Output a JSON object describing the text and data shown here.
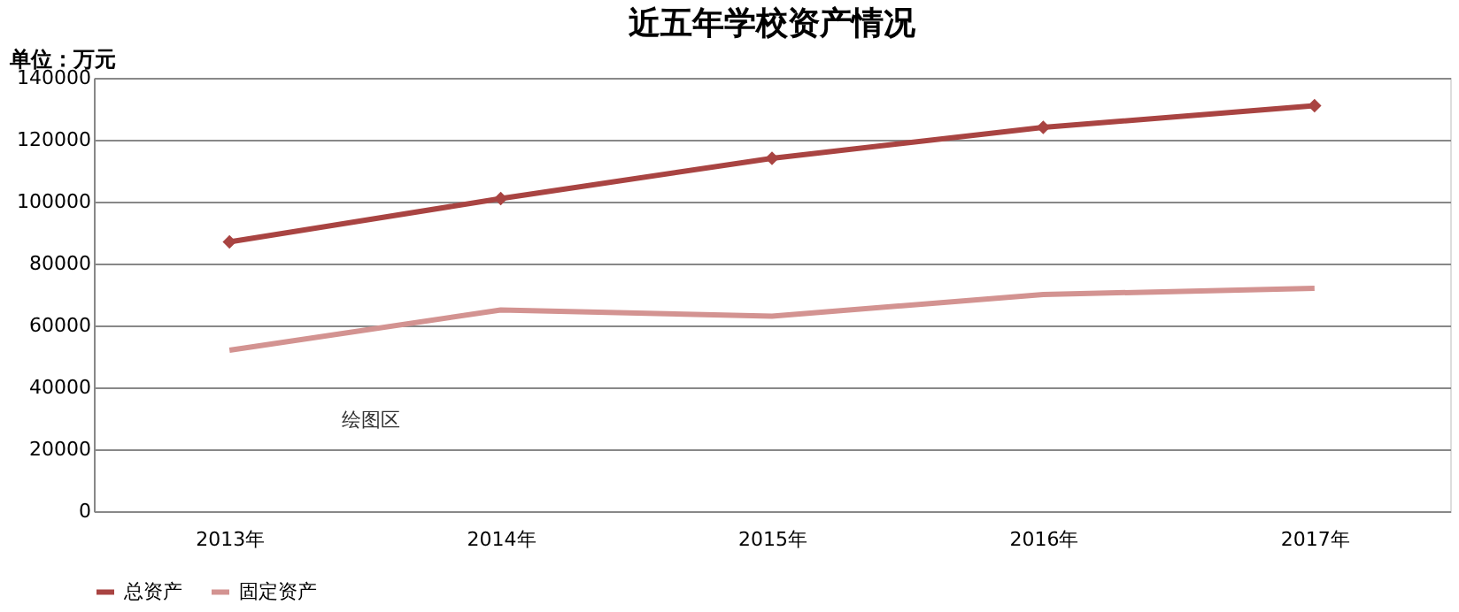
{
  "chart_data": {
    "type": "line",
    "title": "近五年学校资产情况",
    "ylabel": "单位：万元",
    "categories": [
      "2013年",
      "2014年",
      "2015年",
      "2016年",
      "2017年"
    ],
    "series": [
      {
        "name": "总资产",
        "color": "#a94442",
        "values": [
          87000,
          101000,
          114000,
          124000,
          131000
        ],
        "marker": "diamond"
      },
      {
        "name": "固定资产",
        "color": "#d39391",
        "values": [
          52000,
          65000,
          63000,
          70000,
          72000
        ],
        "marker": "none"
      }
    ],
    "ylim": [
      0,
      140000
    ],
    "yticks": [
      0,
      20000,
      40000,
      60000,
      80000,
      100000,
      120000,
      140000
    ],
    "grid": "y",
    "legend": "bottom",
    "line_style": "solid",
    "annotations": [
      "绘图区"
    ]
  }
}
